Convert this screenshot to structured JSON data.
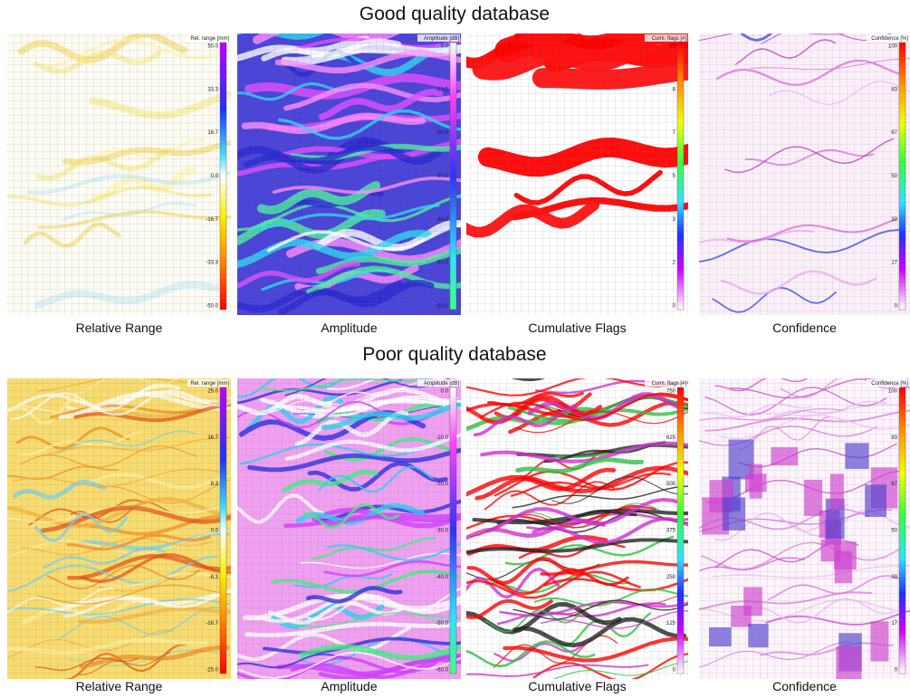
{
  "sections": [
    {
      "title": "Good quality database",
      "panels": [
        {
          "caption": "Relative Range",
          "colorbar": {
            "title": "Rel. range [mm]",
            "ticks": [
              "50.0",
              "33.3",
              "16.7",
              "0.0",
              "-16.7",
              "-33.3",
              "-50.0"
            ]
          }
        },
        {
          "caption": "Amplitude",
          "colorbar": {
            "title": "Amplitude [dB]",
            "ticks": [
              "0.0",
              "-10.0",
              "-20.0",
              "-30.0",
              "-40.0",
              "-50.0",
              "-60.0"
            ]
          }
        },
        {
          "caption": "Cumulative Flags",
          "colorbar": {
            "title": "Cuml. flags [#]",
            "ticks": [
              "10",
              "8",
              "7",
              "5",
              "3",
              "2",
              "0"
            ]
          }
        },
        {
          "caption": "Confidence",
          "colorbar": {
            "title": "Confidence [%]",
            "ticks": [
              "100",
              "83",
              "67",
              "50",
              "33",
              "17",
              "0"
            ]
          }
        }
      ]
    },
    {
      "title": "Poor quality database",
      "panels": [
        {
          "caption": "Relative Range",
          "colorbar": {
            "title": "Rel. range [mm]",
            "ticks": [
              "25.0",
              "16.7",
              "8.3",
              "0.0",
              "-8.3",
              "-16.7",
              "-25.0"
            ]
          }
        },
        {
          "caption": "Amplitude",
          "colorbar": {
            "title": "Amplitude [dB]",
            "ticks": [
              "0.0",
              "-10.0",
              "-20.0",
              "-30.0",
              "-40.0",
              "-50.0",
              "-60.0"
            ]
          }
        },
        {
          "caption": "Cumulative Flags",
          "colorbar": {
            "title": "Cuml. flags [#]",
            "ticks": [
              "750",
              "625",
              "500",
              "375",
              "250",
              "125",
              "0"
            ]
          }
        },
        {
          "caption": "Confidence",
          "colorbar": {
            "title": "Confidence [%]",
            "ticks": [
              "100",
              "83",
              "67",
              "50",
              "33",
              "17",
              "0"
            ]
          }
        }
      ]
    }
  ]
}
